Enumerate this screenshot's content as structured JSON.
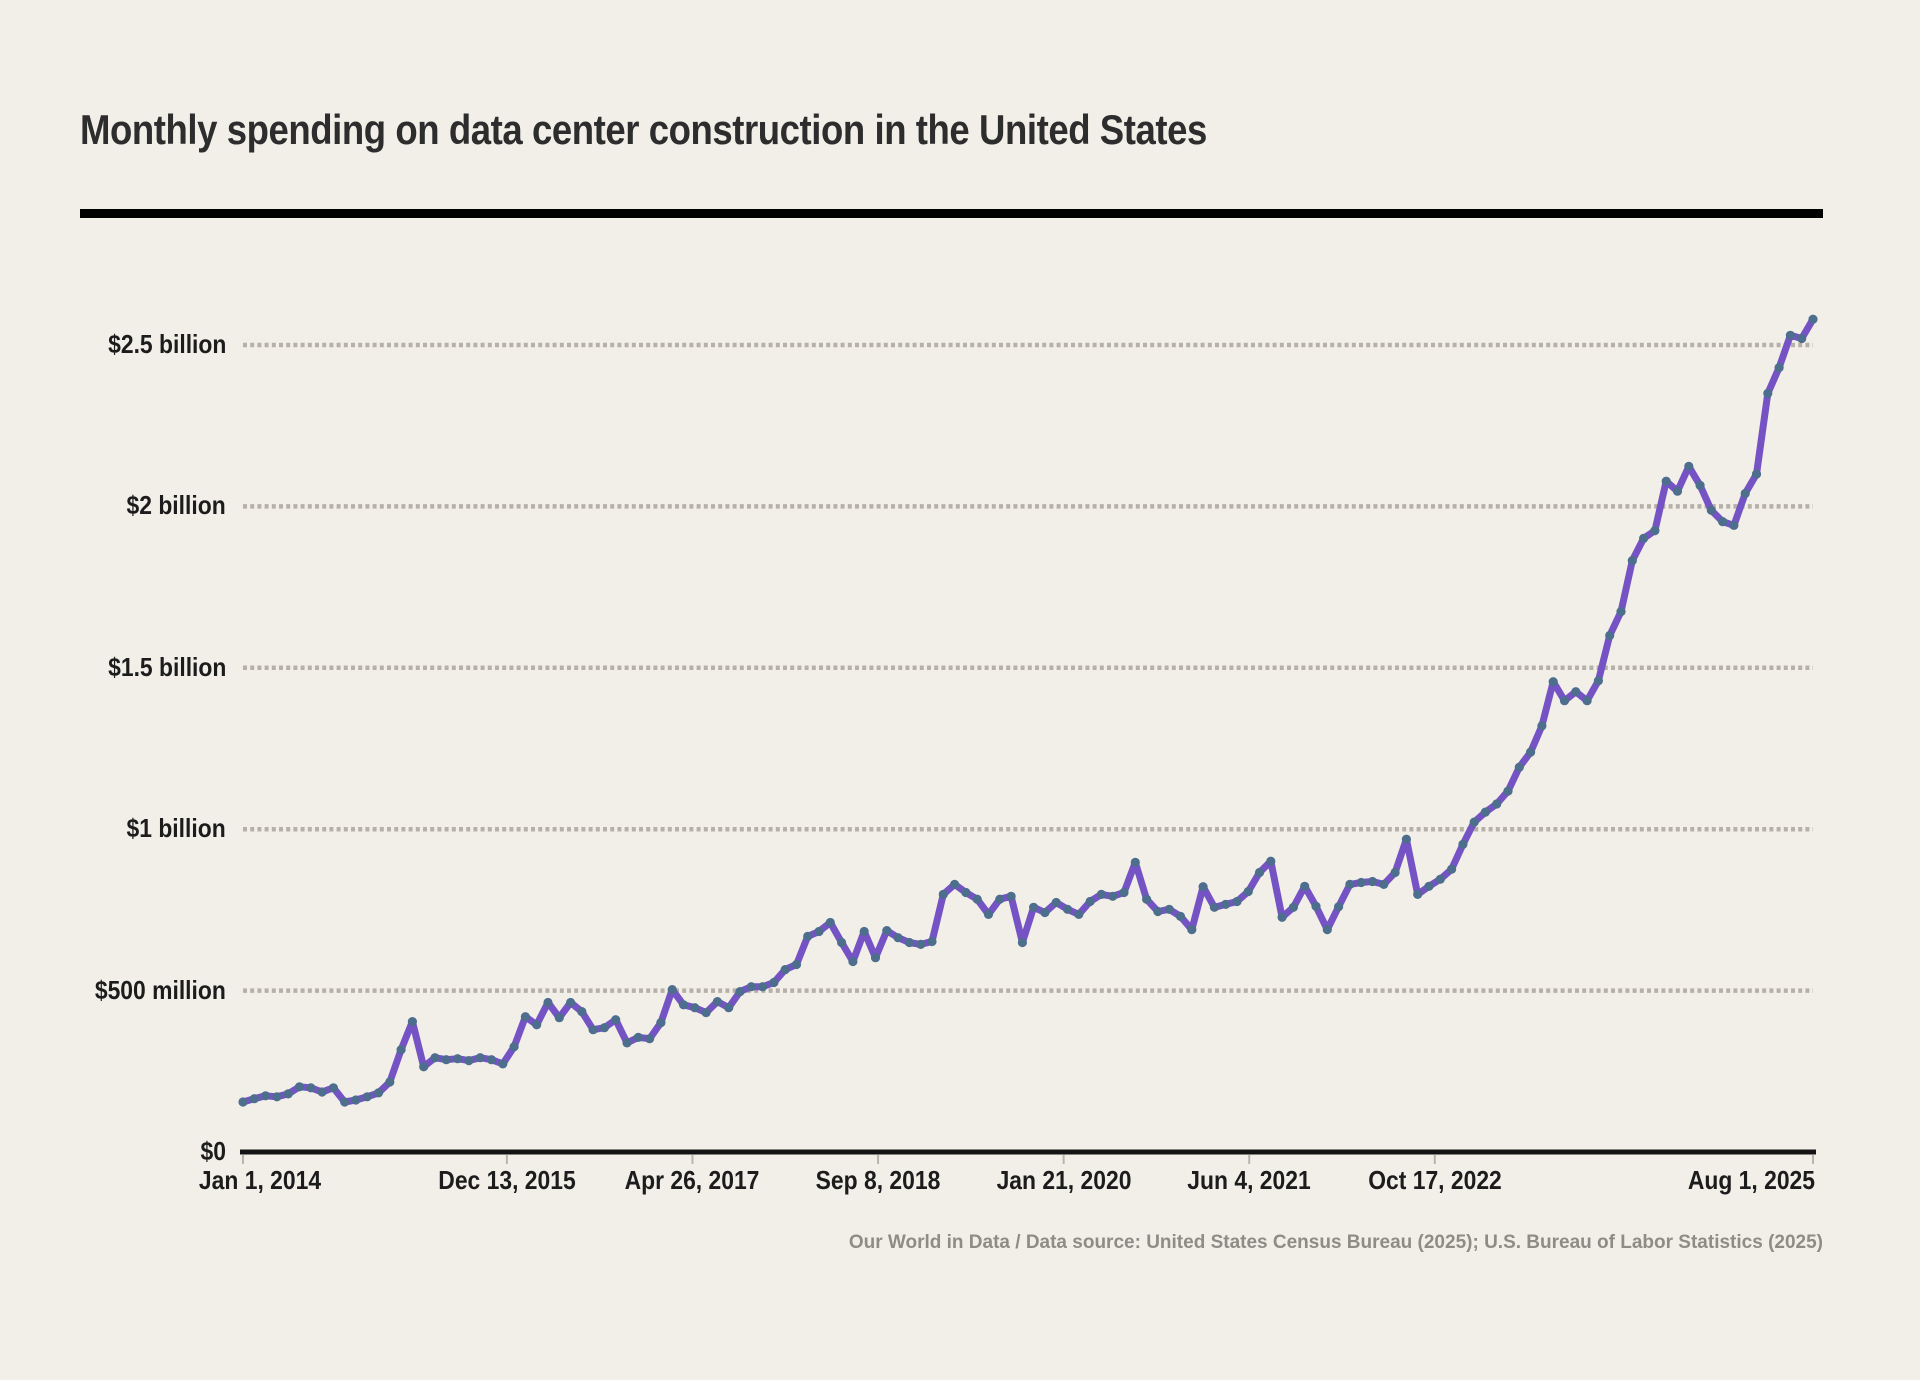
{
  "header": {
    "title": "Monthly spending on data center construction in the United States"
  },
  "footer": {
    "credit": "Our World in Data / Data source: United States Census Bureau (2025); U.S. Bureau of Labor Statistics (2025)"
  },
  "colors": {
    "background": "#f2efe9",
    "title_text": "#2d2d2d",
    "title_rule": "#000000",
    "axis_line": "#141414",
    "tick_text": "#1c1c1c",
    "gridline_dots": "#b5b1a8",
    "axis_tick_mark": "#b9b5ad",
    "line": "#7553c5",
    "point_marker": "#4d6e8d",
    "footer_text": "#8f8c85"
  },
  "chart_data": {
    "type": "line",
    "title": "Monthly spending on data center construction in the United States",
    "xlabel": "",
    "ylabel": "",
    "unit": "US$ million",
    "x_start": "2014-01",
    "x_end": "2025-08",
    "ylim": [
      0,
      2580
    ],
    "grid": "dotted-horizontal",
    "legend_position": "none",
    "y_ticks": [
      {
        "label": "$0",
        "value": 0
      },
      {
        "label": "$500 million",
        "value": 500
      },
      {
        "label": "$1 billion",
        "value": 1000
      },
      {
        "label": "$1.5 billion",
        "value": 1500
      },
      {
        "label": "$2 billion",
        "value": 2000
      },
      {
        "label": "$2.5 billion",
        "value": 2500
      }
    ],
    "x_ticks": [
      {
        "label": "Jan 1, 2014",
        "pos": 0.0
      },
      {
        "label": "Dec 13, 2015",
        "pos": 0.16809
      },
      {
        "label": "Apr 26, 2017",
        "pos": 0.28629
      },
      {
        "label": "Sep 8, 2018",
        "pos": 0.40449
      },
      {
        "label": "Jan 21, 2020",
        "pos": 0.5227
      },
      {
        "label": "Jun 4, 2021",
        "pos": 0.6409
      },
      {
        "label": "Oct 17, 2022",
        "pos": 0.7591
      },
      {
        "label": "Aug 1, 2025",
        "pos": 1.0
      }
    ],
    "series_name": "Monthly spending on data center construction",
    "years": [
      "2014",
      "2015",
      "2016",
      "2017",
      "2018",
      "2019",
      "2020",
      "2021",
      "2022",
      "2023",
      "2024",
      "2025"
    ],
    "monthly_values": {
      "2014": [
        155,
        165,
        174,
        171,
        180,
        202,
        199,
        186,
        199,
        155,
        161,
        171
      ],
      "2015": [
        183,
        217,
        317,
        404,
        264,
        292,
        286,
        289,
        283,
        292,
        286,
        273
      ],
      "2016": [
        326,
        419,
        394,
        463,
        416,
        463,
        435,
        379,
        385,
        410,
        338,
        355
      ],
      "2017": [
        351,
        401,
        503,
        456,
        447,
        432,
        466,
        447,
        497,
        512,
        512,
        525
      ],
      "2018": [
        565,
        581,
        668,
        683,
        711,
        649,
        590,
        683,
        602,
        686,
        664,
        649
      ],
      "2019": [
        643,
        652,
        798,
        829,
        804,
        783,
        736,
        783,
        792,
        649,
        758,
        742
      ],
      "2020": [
        773,
        752,
        736,
        776,
        798,
        792,
        804,
        897,
        783,
        745,
        752,
        730
      ],
      "2021": [
        689,
        822,
        758,
        767,
        776,
        807,
        866,
        901,
        727,
        758,
        823,
        761
      ],
      "2022": [
        689,
        760,
        829,
        835,
        838,
        829,
        866,
        969,
        798,
        823,
        845,
        876
      ],
      "2023": [
        953,
        1022,
        1053,
        1078,
        1118,
        1192,
        1239,
        1320,
        1457,
        1398,
        1426,
        1398
      ],
      "2024": [
        1460,
        1600,
        1674,
        1832,
        1901,
        1925,
        2078,
        2047,
        2124,
        2065,
        1988,
        1953
      ],
      "2025": [
        1941,
        2040,
        2100,
        2350,
        2430,
        2530,
        2520,
        2580
      ]
    }
  }
}
